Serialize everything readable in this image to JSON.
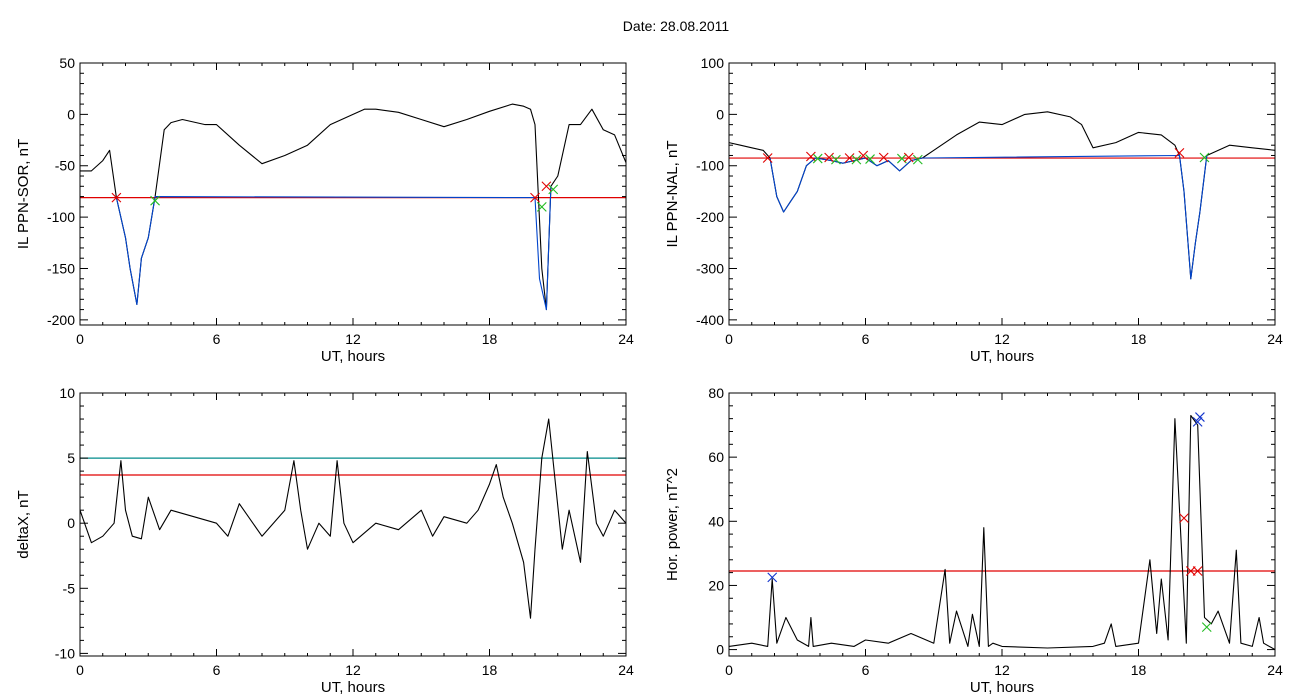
{
  "page": {
    "title": "Date:  28.08.2011"
  },
  "colors": {
    "trace": "#000000",
    "threshold_red": "#e00000",
    "threshold_teal": "#008b8b",
    "event_blue": "#0044cc",
    "marker_red": "#e00000",
    "marker_green": "#22bb22",
    "marker_blue": "#1133cc"
  },
  "chart_data": [
    {
      "type": "line",
      "id": "sor",
      "xlabel": "UT, hours",
      "ylabel": "IL PPN-SOR, nT",
      "xlim": [
        0,
        24
      ],
      "ylim": [
        -205,
        50
      ],
      "xticks": [
        0,
        6,
        12,
        18,
        24
      ],
      "yticks": [
        50,
        0,
        -50,
        -100,
        -150,
        -200
      ],
      "thresholds": [
        {
          "value": -81,
          "color": "red"
        }
      ],
      "series": [
        {
          "color": "black",
          "x": [
            0,
            0.5,
            1.0,
            1.3,
            1.6,
            2.0,
            2.2,
            2.5,
            2.7,
            3.0,
            3.3,
            3.7,
            4.0,
            4.5,
            5.5,
            6.0,
            7.0,
            8.0,
            9.0,
            10.0,
            11.0,
            12.0,
            12.5,
            13.0,
            14.0,
            15.0,
            16.0,
            17.0,
            18.0,
            19.0,
            19.5,
            19.8,
            20.0,
            20.3,
            20.5,
            20.7,
            21.0,
            21.5,
            22.0,
            22.5,
            23.0,
            23.5,
            24.0
          ],
          "y": [
            -55,
            -55,
            -45,
            -35,
            -81,
            -120,
            -150,
            -185,
            -140,
            -120,
            -80,
            -15,
            -8,
            -5,
            -10,
            -10,
            -30,
            -48,
            -40,
            -30,
            -10,
            0,
            5,
            5,
            2,
            -5,
            -12,
            -5,
            3,
            10,
            8,
            5,
            -10,
            -150,
            -190,
            -70,
            -60,
            -10,
            -10,
            5,
            -15,
            -20,
            -47
          ]
        },
        {
          "color": "blue",
          "x": [
            1.6,
            2.0,
            2.2,
            2.5,
            2.7,
            3.0,
            3.3,
            20.0,
            20.2,
            20.5,
            20.7
          ],
          "y": [
            -81,
            -120,
            -150,
            -185,
            -140,
            -120,
            -80,
            -81,
            -160,
            -190,
            -70
          ]
        }
      ],
      "markers": [
        {
          "x": 1.6,
          "y": -81,
          "color": "red"
        },
        {
          "x": 3.3,
          "y": -84,
          "color": "green"
        },
        {
          "x": 20.0,
          "y": -81,
          "color": "red"
        },
        {
          "x": 20.3,
          "y": -90,
          "color": "green"
        },
        {
          "x": 20.5,
          "y": -70,
          "color": "red"
        },
        {
          "x": 20.8,
          "y": -73,
          "color": "green"
        }
      ]
    },
    {
      "type": "line",
      "id": "nal",
      "xlabel": "UT, hours",
      "ylabel": "IL PPN-NAL, nT",
      "xlim": [
        0,
        24
      ],
      "ylim": [
        -410,
        100
      ],
      "xticks": [
        0,
        6,
        12,
        18,
        24
      ],
      "yticks": [
        100,
        0,
        -100,
        -200,
        -300,
        -400
      ],
      "thresholds": [
        {
          "value": -85,
          "color": "red"
        }
      ],
      "series": [
        {
          "color": "black",
          "x": [
            0,
            0.5,
            1.0,
            1.5,
            1.8,
            2.1,
            2.4,
            2.7,
            3.0,
            3.4,
            3.8,
            4.5,
            5.0,
            5.5,
            6.0,
            6.5,
            7.0,
            7.5,
            8.0,
            8.5,
            9.0,
            10.0,
            11.0,
            12.0,
            13.0,
            14.0,
            15.0,
            15.5,
            16.0,
            17.0,
            18.0,
            19.0,
            19.6,
            19.8,
            20.0,
            20.3,
            20.5,
            20.7,
            21.0,
            22.0,
            23.0,
            24.0
          ],
          "y": [
            -55,
            -60,
            -65,
            -70,
            -85,
            -160,
            -190,
            -170,
            -150,
            -100,
            -85,
            -90,
            -95,
            -90,
            -85,
            -100,
            -90,
            -110,
            -90,
            -85,
            -70,
            -40,
            -15,
            -20,
            0,
            5,
            -5,
            -20,
            -65,
            -55,
            -35,
            -40,
            -60,
            -80,
            -150,
            -320,
            -250,
            -190,
            -80,
            -60,
            -65,
            -70
          ]
        },
        {
          "color": "blue",
          "x": [
            1.8,
            2.1,
            2.4,
            2.7,
            3.0,
            3.4,
            3.8,
            4.5,
            5.0,
            5.5,
            6.0,
            6.5,
            7.0,
            7.5,
            8.0,
            8.5,
            19.8,
            20.0,
            20.3,
            20.5,
            20.7,
            21.0
          ],
          "y": [
            -85,
            -160,
            -190,
            -170,
            -150,
            -100,
            -85,
            -90,
            -95,
            -90,
            -85,
            -100,
            -90,
            -110,
            -90,
            -85,
            -80,
            -150,
            -320,
            -250,
            -190,
            -80
          ]
        }
      ],
      "markers": [
        {
          "x": 1.7,
          "y": -85,
          "color": "red"
        },
        {
          "x": 3.6,
          "y": -82,
          "color": "red"
        },
        {
          "x": 3.9,
          "y": -86,
          "color": "green"
        },
        {
          "x": 4.4,
          "y": -84,
          "color": "red"
        },
        {
          "x": 4.7,
          "y": -88,
          "color": "green"
        },
        {
          "x": 5.3,
          "y": -85,
          "color": "red"
        },
        {
          "x": 5.6,
          "y": -88,
          "color": "green"
        },
        {
          "x": 5.9,
          "y": -80,
          "color": "red"
        },
        {
          "x": 6.2,
          "y": -87,
          "color": "green"
        },
        {
          "x": 6.8,
          "y": -84,
          "color": "red"
        },
        {
          "x": 7.6,
          "y": -86,
          "color": "green"
        },
        {
          "x": 7.9,
          "y": -84,
          "color": "red"
        },
        {
          "x": 8.3,
          "y": -88,
          "color": "green"
        },
        {
          "x": 19.8,
          "y": -75,
          "color": "red"
        },
        {
          "x": 20.9,
          "y": -84,
          "color": "green"
        }
      ]
    },
    {
      "type": "line",
      "id": "deltax",
      "xlabel": "UT, hours",
      "ylabel": "deltaX, nT",
      "xlim": [
        0,
        24
      ],
      "ylim": [
        -10.2,
        10
      ],
      "xticks": [
        0,
        6,
        12,
        18,
        24
      ],
      "yticks": [
        10,
        5,
        0,
        -5,
        -10
      ],
      "thresholds": [
        {
          "value": 5,
          "color": "teal"
        },
        {
          "value": 3.7,
          "color": "red"
        }
      ],
      "series": [
        {
          "color": "black",
          "x": [
            0,
            0.5,
            1.0,
            1.5,
            1.8,
            2.0,
            2.3,
            2.7,
            3.0,
            3.5,
            4.0,
            5.0,
            6.0,
            6.5,
            7.0,
            8.0,
            8.5,
            9.0,
            9.4,
            9.7,
            10.0,
            10.5,
            11.0,
            11.3,
            11.6,
            12.0,
            13.0,
            14.0,
            15.0,
            15.5,
            16.0,
            17.0,
            17.5,
            18.0,
            18.3,
            18.6,
            19.0,
            19.5,
            19.8,
            20.0,
            20.3,
            20.6,
            20.9,
            21.2,
            21.5,
            22.0,
            22.3,
            22.7,
            23.0,
            23.5,
            24.0
          ],
          "y": [
            1,
            -1.5,
            -1,
            0,
            4.8,
            1,
            -1,
            -1.2,
            2,
            -0.5,
            1,
            0.5,
            0,
            -1,
            1.5,
            -1,
            0,
            1,
            4.8,
            1,
            -2,
            0,
            -1,
            4.8,
            0,
            -1.5,
            0,
            -0.5,
            1,
            -1,
            0.5,
            0,
            1,
            3,
            4.5,
            2,
            0,
            -3,
            -7.3,
            -2,
            5,
            8,
            3,
            -2,
            1,
            -3,
            5.5,
            0,
            -1,
            1,
            0
          ]
        }
      ]
    },
    {
      "type": "line",
      "id": "power",
      "xlabel": "UT, hours",
      "ylabel": "Hor. power, nT^2",
      "xlim": [
        0,
        24
      ],
      "ylim": [
        -2,
        80
      ],
      "xticks": [
        0,
        6,
        12,
        18,
        24
      ],
      "yticks": [
        80,
        60,
        40,
        20,
        0
      ],
      "thresholds": [
        {
          "value": 24.5,
          "color": "red"
        }
      ],
      "series": [
        {
          "color": "black",
          "x": [
            0,
            1.0,
            1.7,
            1.9,
            2.1,
            2.5,
            3.0,
            3.5,
            3.6,
            3.7,
            4.5,
            5.5,
            6.0,
            7.0,
            8.0,
            9.0,
            9.5,
            9.7,
            10.0,
            10.5,
            10.7,
            11.0,
            11.2,
            11.4,
            11.6,
            12.0,
            14.0,
            16.0,
            16.5,
            16.8,
            17.0,
            18.0,
            18.5,
            18.8,
            19.0,
            19.3,
            19.6,
            19.9,
            20.1,
            20.3,
            20.6,
            20.9,
            21.2,
            21.5,
            22.0,
            22.3,
            22.5,
            23.0,
            23.3,
            23.5,
            24.0
          ],
          "y": [
            1,
            2,
            1,
            22,
            2,
            10,
            3,
            1,
            10,
            1,
            2,
            1,
            3,
            2,
            5,
            2,
            25,
            2,
            12,
            1,
            11,
            1,
            38,
            1,
            2,
            1,
            0.5,
            1,
            2,
            8,
            1,
            2,
            28,
            5,
            22,
            3,
            72,
            30,
            2,
            73,
            70,
            10,
            8,
            12,
            2,
            31,
            2,
            1,
            10,
            2,
            0
          ]
        }
      ],
      "markers": [
        {
          "x": 1.9,
          "y": 22.5,
          "color": "blue"
        },
        {
          "x": 20.0,
          "y": 41,
          "color": "red"
        },
        {
          "x": 20.3,
          "y": 24.5,
          "color": "red"
        },
        {
          "x": 20.6,
          "y": 24.5,
          "color": "red"
        },
        {
          "x": 20.6,
          "y": 71,
          "color": "blue"
        },
        {
          "x": 20.7,
          "y": 72.5,
          "color": "blue"
        },
        {
          "x": 21.0,
          "y": 7,
          "color": "green"
        }
      ]
    }
  ]
}
